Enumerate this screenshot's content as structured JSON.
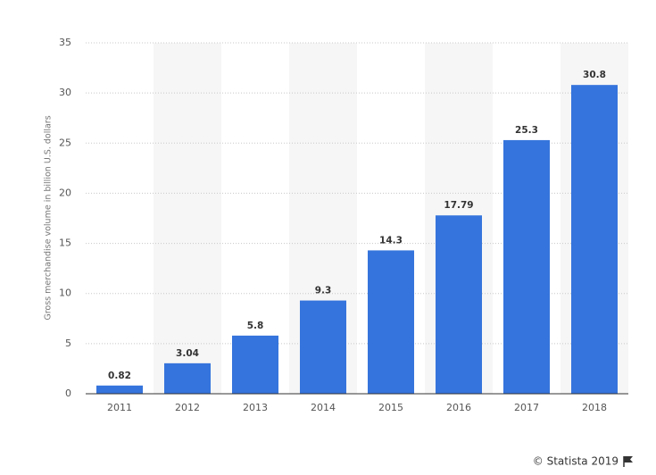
{
  "chart_data": {
    "type": "bar",
    "y_label": "Gross merchandise volume in billion U.S. dollars",
    "categories": [
      "2011",
      "2012",
      "2013",
      "2014",
      "2015",
      "2016",
      "2017",
      "2018"
    ],
    "values": [
      0.82,
      3.04,
      5.8,
      9.3,
      14.3,
      17.79,
      25.3,
      30.8
    ],
    "color": "#3574dc",
    "ylim": [
      0,
      35
    ],
    "yticks": [
      0,
      5,
      10,
      15,
      20,
      25,
      30,
      35
    ],
    "grid": true
  },
  "footer": "© Statista 2019"
}
